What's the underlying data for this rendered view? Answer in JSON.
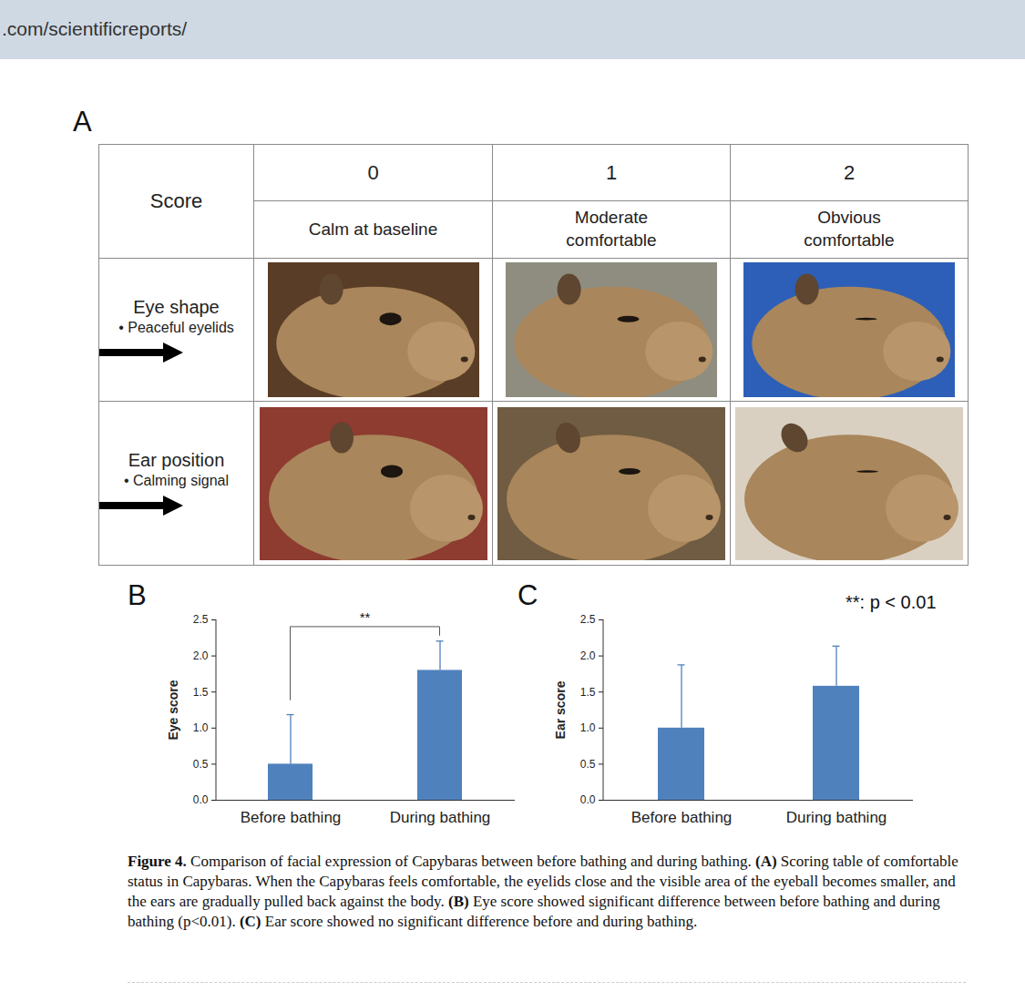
{
  "header": {
    "url": ".com/scientificreports/"
  },
  "panel_a": {
    "letter": "A",
    "corner": "Score",
    "columns": [
      {
        "score": 0,
        "description": "Calm at baseline"
      },
      {
        "score": 1,
        "description": "Moderate comfortable"
      },
      {
        "score": 2,
        "description": "Obvious comfortable"
      }
    ],
    "rows": [
      {
        "label": "Eye shape",
        "bullet": "• Peaceful eyelids"
      },
      {
        "label": "Ear position",
        "bullet": "• Calming signal"
      }
    ]
  },
  "chart_data": [
    {
      "panel": "B",
      "type": "bar",
      "y_label": "Eye score",
      "categories": [
        "Before bathing",
        "During bathing"
      ],
      "values": [
        0.5,
        1.8
      ],
      "errors": [
        0.68,
        0.4
      ],
      "color": "#4f81bd",
      "ylim": [
        0,
        2.5
      ],
      "yticks": [
        {
          "value": 0,
          "label": "0.0"
        },
        {
          "value": 0.5,
          "label": "0.5"
        },
        {
          "value": 1,
          "label": "1.0"
        },
        {
          "value": 1.5,
          "label": "1.5"
        },
        {
          "value": 2,
          "label": "2.0"
        },
        {
          "value": 2.5,
          "label": "2.5"
        }
      ],
      "significance": {
        "text": "**",
        "between": [
          "Before bathing",
          "During bathing"
        ]
      }
    },
    {
      "panel": "C",
      "type": "bar",
      "y_label": "Ear score",
      "categories": [
        "Before bathing",
        "During bathing"
      ],
      "values": [
        1.0,
        1.58
      ],
      "errors": [
        0.87,
        0.55
      ],
      "color": "#4f81bd",
      "ylim": [
        0,
        2.5
      ],
      "yticks": [
        {
          "value": 0,
          "label": "0.0"
        },
        {
          "value": 0.5,
          "label": "0.5"
        },
        {
          "value": 1,
          "label": "1.0"
        },
        {
          "value": 1.5,
          "label": "1.5"
        },
        {
          "value": 2,
          "label": "2.0"
        },
        {
          "value": 2.5,
          "label": "2.5"
        }
      ],
      "annotation": "**: p < 0.01"
    }
  ],
  "caption": [
    {
      "text": "Figure 4.",
      "bold": true
    },
    {
      "text": "Comparison of facial expression of Capybaras between before bathing and during bathing."
    },
    {
      "text": "(A)",
      "bold": true
    },
    {
      "text": "Scoring table of comfortable status in Capybaras. When the Capybaras feels comfortable, the eyelids close and the visible area of the eyeball becomes smaller, and the ears are gradually pulled back against the body."
    },
    {
      "text": "(B)",
      "bold": true
    },
    {
      "text": "Eye score showed significant difference between before bathing and during bathing (p<0.01)."
    },
    {
      "text": "(C)",
      "bold": true
    },
    {
      "text": "Ear score showed no significant difference before and during bathing."
    }
  ]
}
